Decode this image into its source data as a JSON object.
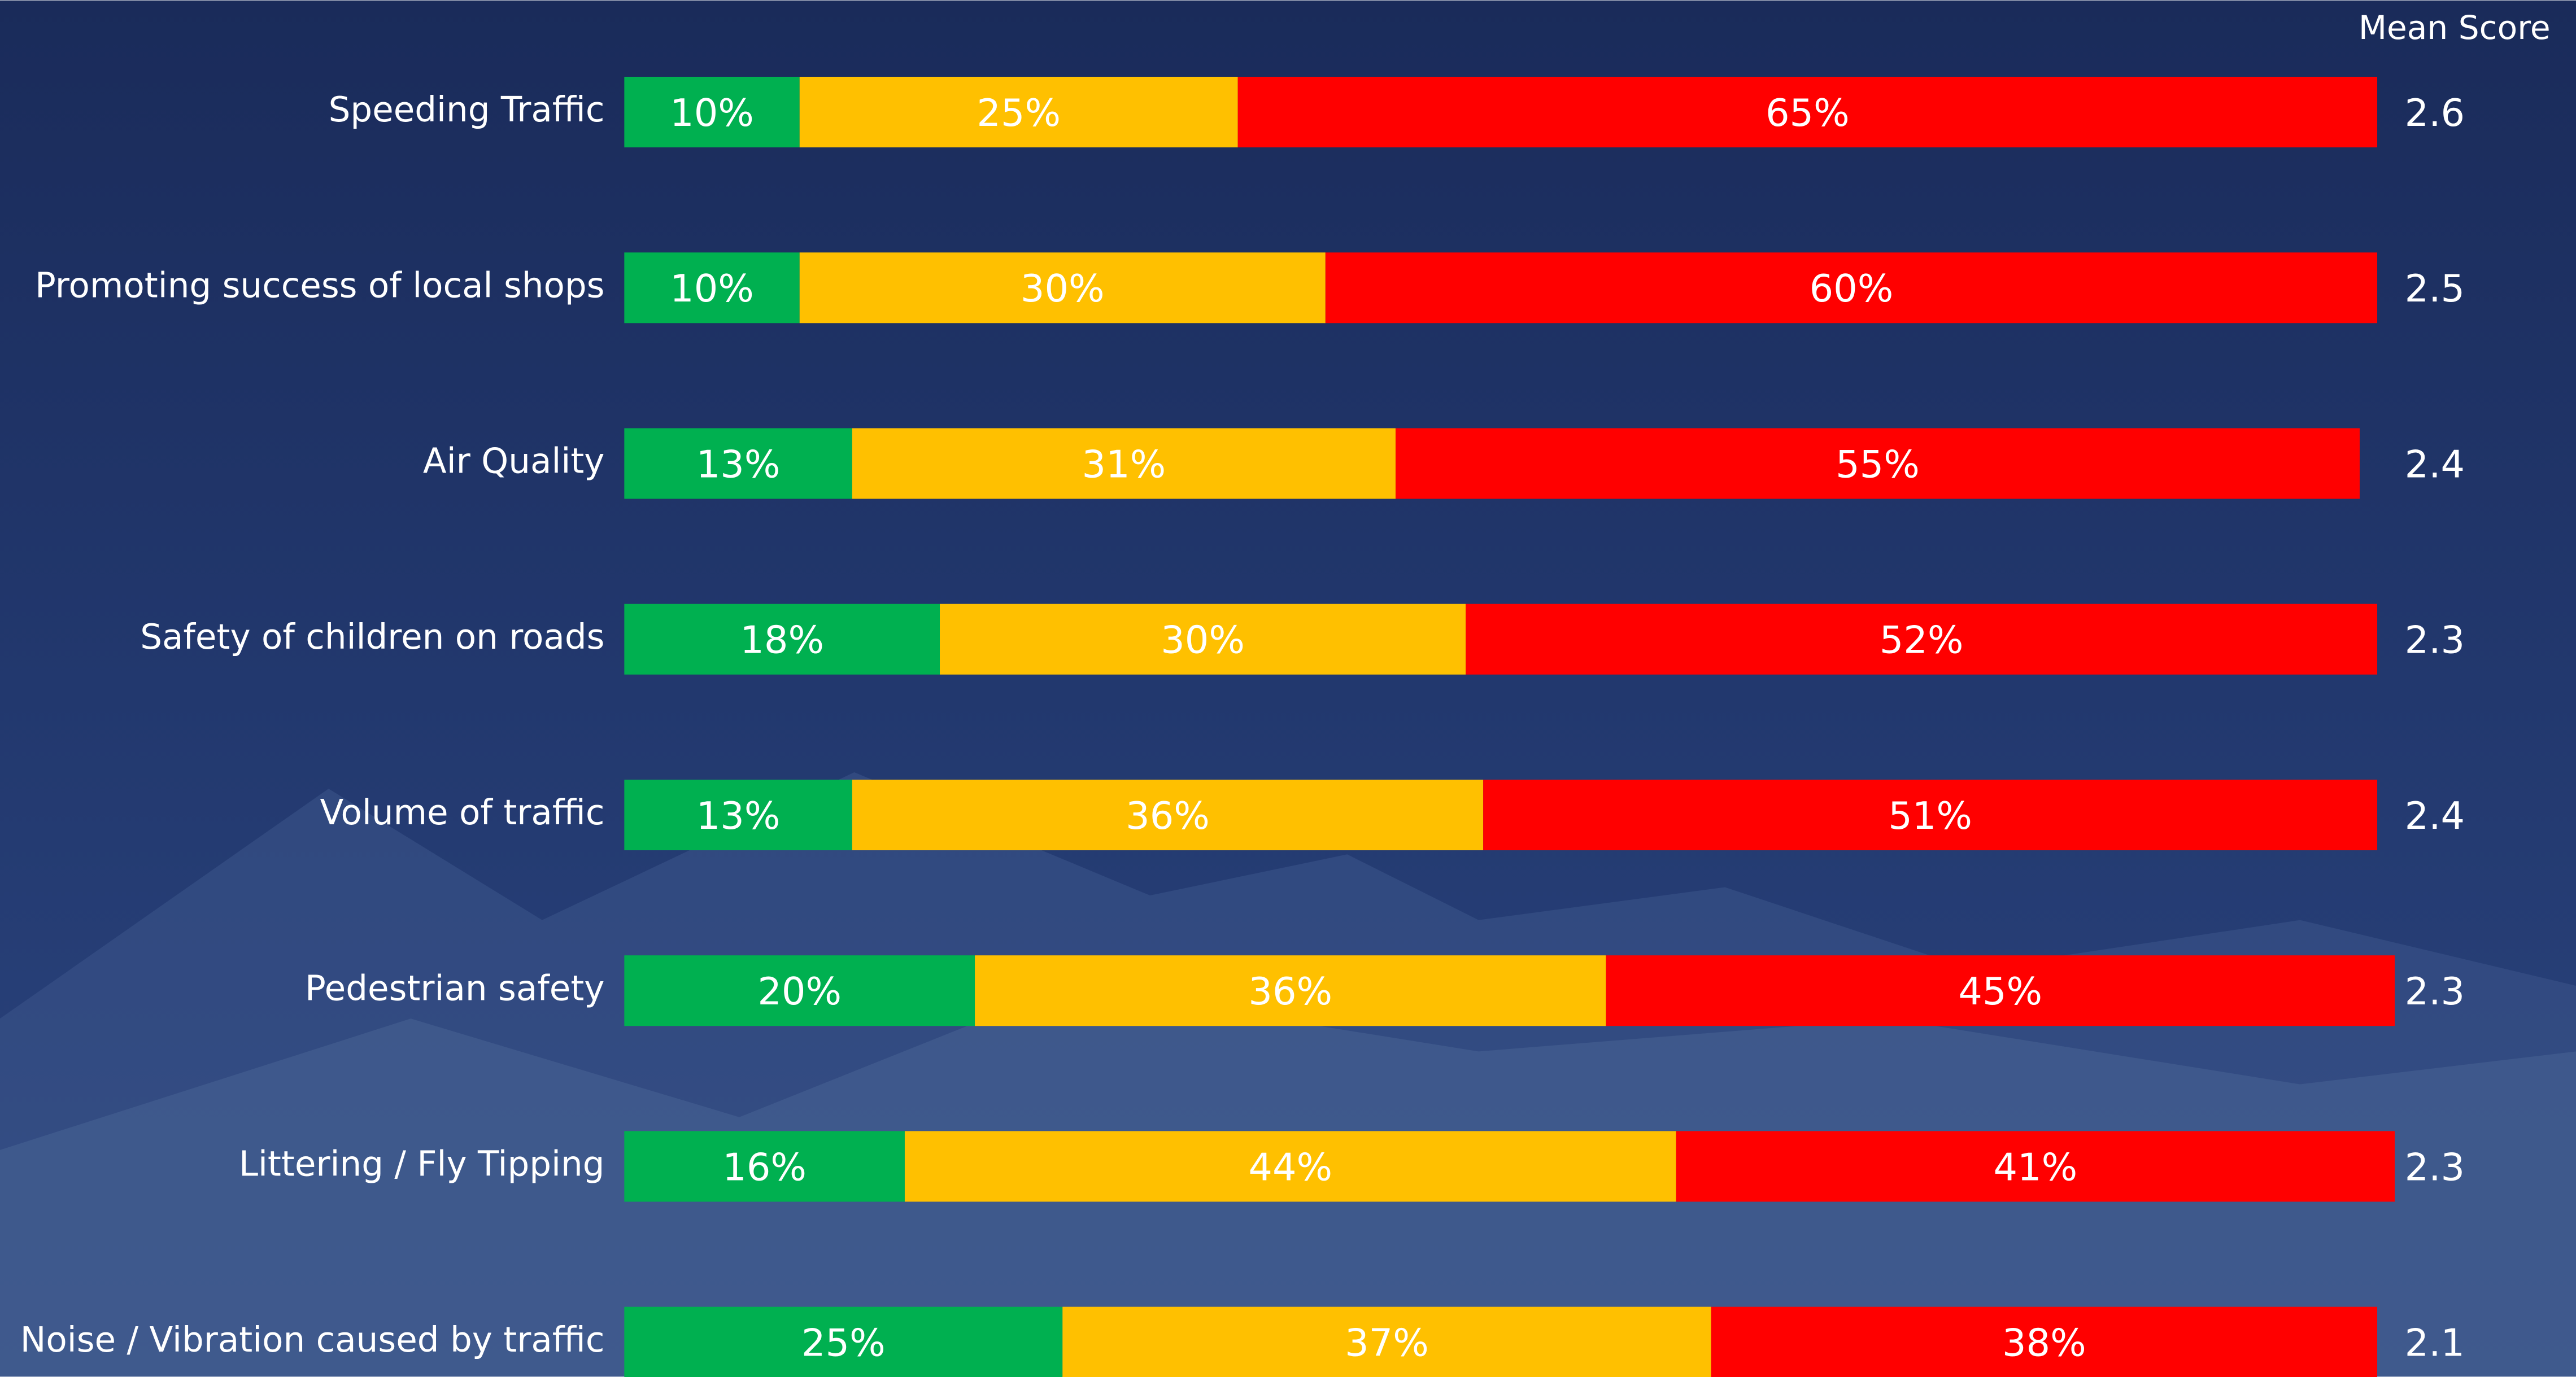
{
  "chart_data": {
    "type": "stacked_bar_horizontal",
    "mean_score_title": "Mean Score",
    "categories": [
      "Speeding Traffic",
      "Promoting success of local shops",
      "Air Quality",
      "Safety of children on roads",
      "Volume of traffic",
      "Pedestrian safety",
      "Littering  / Fly Tipping",
      "Noise / Vibration caused by traffic"
    ],
    "xlim": [
      0,
      100
    ],
    "series": [
      {
        "color": "#00b050",
        "values": [
          10,
          10,
          13,
          18,
          13,
          20,
          16,
          25
        ],
        "value_labels": [
          "10%",
          "10%",
          "13%",
          "18%",
          "13%",
          "20%",
          "16%",
          "25%"
        ]
      },
      {
        "color": "#ffc000",
        "values": [
          25,
          30,
          31,
          30,
          36,
          36,
          44,
          37
        ],
        "value_labels": [
          "25%",
          "30%",
          "31%",
          "30%",
          "36%",
          "36%",
          "44%",
          "37%"
        ]
      },
      {
        "color": "#ff0000",
        "values": [
          65,
          60,
          55,
          52,
          51,
          45,
          41,
          38
        ],
        "value_labels": [
          "65%",
          "60%",
          "55%",
          "52%",
          "51%",
          "45%",
          "41%",
          "38%"
        ]
      }
    ],
    "mean_scores": [
      2.6,
      2.5,
      2.4,
      2.3,
      2.4,
      2.3,
      2.3,
      2.1
    ]
  }
}
